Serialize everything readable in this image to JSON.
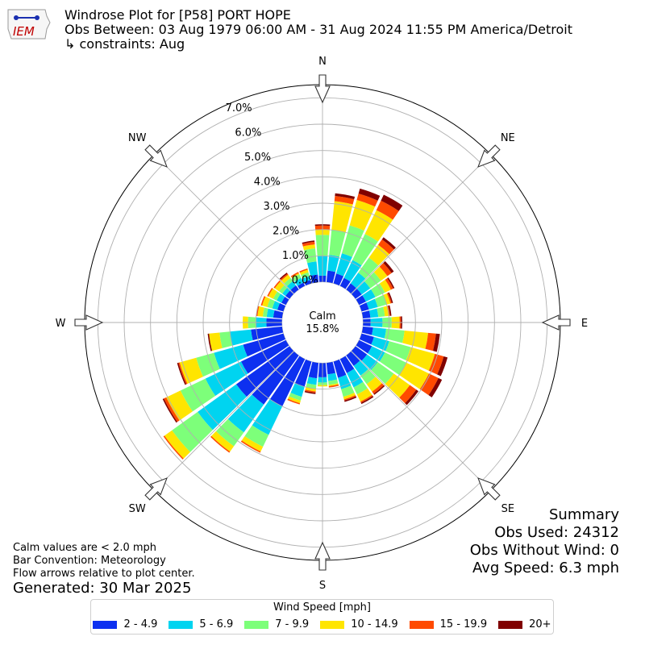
{
  "header": {
    "logo_text": "IEM",
    "title": "Windrose Plot for [P58] PORT HOPE",
    "subtitle": "Obs Between: 03 Aug 1979 06:00 AM - 31 Aug 2024 11:55 PM America/Detroit",
    "constraints": " ↳ constraints: Aug"
  },
  "summary": {
    "heading": "Summary",
    "obs_used": "Obs Used: 24312",
    "obs_without_wind": "Obs Without Wind: 0",
    "avg_speed": "Avg Speed: 6.3 mph"
  },
  "notes": {
    "calm": "Calm values are < 2.0 mph",
    "convention": "Bar Convention: Meteorology",
    "flow": "Flow arrows relative to plot center.",
    "generated": "Generated: 30 Mar 2025"
  },
  "chart_data": {
    "type": "windrose",
    "calm_label": "Calm",
    "calm_value": "15.8%",
    "radial_unit": "%",
    "radial_ticks": [
      "0.0%",
      "1.0%",
      "2.0%",
      "3.0%",
      "4.0%",
      "5.0%",
      "6.0%",
      "7.0%"
    ],
    "rmax": 7.5,
    "compass_labels": [
      "N",
      "NE",
      "E",
      "SE",
      "S",
      "SW",
      "W",
      "NW"
    ],
    "legend_title": "Wind Speed [mph]",
    "bins": [
      {
        "label": "2 - 4.9",
        "color": "#0d30f0"
      },
      {
        "label": "5 - 6.9",
        "color": "#00d4f0"
      },
      {
        "label": "7 - 9.9",
        "color": "#7dff7a"
      },
      {
        "label": "10 - 14.9",
        "color": "#ffe500"
      },
      {
        "label": "15 - 19.9",
        "color": "#ff4a00"
      },
      {
        "label": "20+",
        "color": "#800000"
      }
    ],
    "directions_deg": [
      0,
      10,
      20,
      30,
      40,
      50,
      60,
      70,
      80,
      90,
      100,
      110,
      120,
      130,
      140,
      150,
      160,
      170,
      180,
      190,
      200,
      210,
      220,
      230,
      240,
      250,
      260,
      270,
      280,
      290,
      300,
      310,
      320,
      330,
      340,
      350
    ],
    "cumulative": [
      [
        0.25,
        1.0,
        1.8,
        2.0,
        2.15,
        2.2
      ],
      [
        0.45,
        1.05,
        2.0,
        3.1,
        3.3,
        3.4
      ],
      [
        0.4,
        1.2,
        2.3,
        3.3,
        3.55,
        3.75
      ],
      [
        0.35,
        1.1,
        2.2,
        3.2,
        3.6,
        3.85
      ],
      [
        0.3,
        0.8,
        1.5,
        2.1,
        2.35,
        2.45
      ],
      [
        0.3,
        0.7,
        1.2,
        1.5,
        1.7,
        1.8
      ],
      [
        0.3,
        0.7,
        1.1,
        1.35,
        1.45,
        1.5
      ],
      [
        0.3,
        0.65,
        1.0,
        1.15,
        1.2,
        1.25
      ],
      [
        0.3,
        0.6,
        0.85,
        1.0,
        1.05,
        1.1
      ],
      [
        0.3,
        0.75,
        1.1,
        1.4,
        1.45,
        1.5
      ],
      [
        0.4,
        0.9,
        1.6,
        2.5,
        2.8,
        2.95
      ],
      [
        0.5,
        1.1,
        1.95,
        2.9,
        3.25,
        3.4
      ],
      [
        0.55,
        1.1,
        2.0,
        2.95,
        3.35,
        3.5
      ],
      [
        0.55,
        1.05,
        1.8,
        2.55,
        2.85,
        2.95
      ],
      [
        0.5,
        0.95,
        1.35,
        1.7,
        1.8,
        1.85
      ],
      [
        0.6,
        1.2,
        1.5,
        1.8,
        1.85,
        1.9
      ],
      [
        0.65,
        1.1,
        1.4,
        1.5,
        1.55,
        1.6
      ],
      [
        0.45,
        0.7,
        0.85,
        0.9,
        0.95,
        0.95
      ],
      [
        0.55,
        0.75,
        0.85,
        0.9,
        0.9,
        0.9
      ],
      [
        0.6,
        0.85,
        1.0,
        1.1,
        1.15,
        1.2
      ],
      [
        1.0,
        1.4,
        1.55,
        1.65,
        1.7,
        1.7
      ],
      [
        2.0,
        3.2,
        3.7,
        3.9,
        3.95,
        3.95
      ],
      [
        2.3,
        3.6,
        4.25,
        4.5,
        4.55,
        4.55
      ],
      [
        2.5,
        4.3,
        5.5,
        5.85,
        5.9,
        5.9
      ],
      [
        1.9,
        3.4,
        4.45,
        5.05,
        5.15,
        5.2
      ],
      [
        1.6,
        2.75,
        3.45,
        4.1,
        4.15,
        4.2
      ],
      [
        1.2,
        2.0,
        2.4,
        2.8,
        2.8,
        2.85
      ],
      [
        0.6,
        1.0,
        1.3,
        1.5,
        1.5,
        1.5
      ],
      [
        0.35,
        0.6,
        0.75,
        0.95,
        1.0,
        1.0
      ],
      [
        0.25,
        0.45,
        0.65,
        0.85,
        0.9,
        0.9
      ],
      [
        0.2,
        0.4,
        0.55,
        0.75,
        0.8,
        0.8
      ],
      [
        0.2,
        0.35,
        0.5,
        0.7,
        0.75,
        0.75
      ],
      [
        0.2,
        0.4,
        0.55,
        0.7,
        0.75,
        0.8
      ],
      [
        0.15,
        0.35,
        0.5,
        0.55,
        0.6,
        0.6
      ],
      [
        0.15,
        0.3,
        0.45,
        0.55,
        0.6,
        0.6
      ],
      [
        0.3,
        0.8,
        1.3,
        1.45,
        1.55,
        1.6
      ]
    ]
  }
}
